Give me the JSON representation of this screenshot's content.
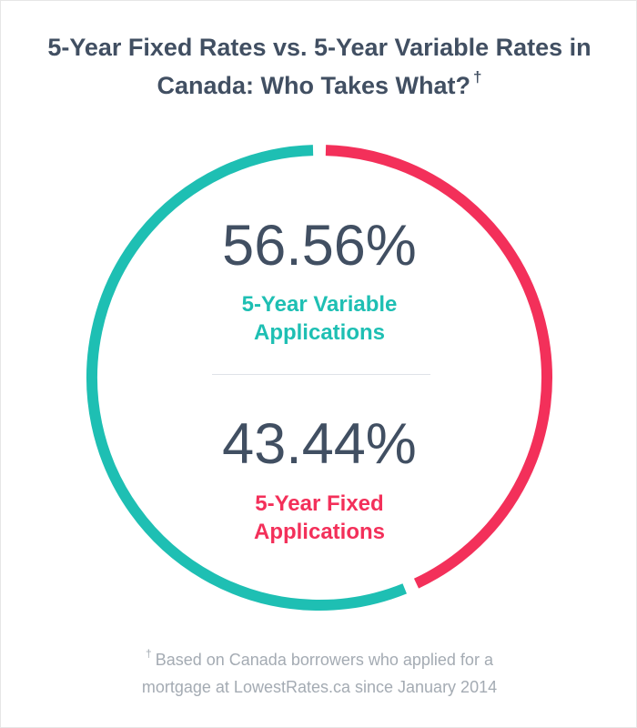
{
  "title": "5-Year Fixed Rates vs. 5-Year Variable Rates in Canada: Who Takes What?",
  "title_mark": "†",
  "variable": {
    "value_text": "56.56%",
    "label_line1": "5-Year Variable",
    "label_line2": "Applications"
  },
  "fixed": {
    "value_text": "43.44%",
    "label_line1": "5-Year Fixed",
    "label_line2": "Applications"
  },
  "footnote": {
    "mark": "†",
    "line1": "Based on Canada borrowers who applied for a",
    "line2": "mortgage at LowestRates.ca since January 2014"
  },
  "colors": {
    "variable": "#1ebfb3",
    "fixed": "#f3305a",
    "text": "#414f62",
    "footnote": "#a4abb3"
  },
  "chart_data": {
    "type": "pie",
    "title": "5-Year Fixed Rates vs. 5-Year Variable Rates in Canada: Who Takes What?",
    "categories": [
      "5-Year Variable Applications",
      "5-Year Fixed Applications"
    ],
    "values": [
      56.56,
      43.44
    ],
    "unit": "%",
    "colors": [
      "#1ebfb3",
      "#f3305a"
    ],
    "legend": "none"
  }
}
